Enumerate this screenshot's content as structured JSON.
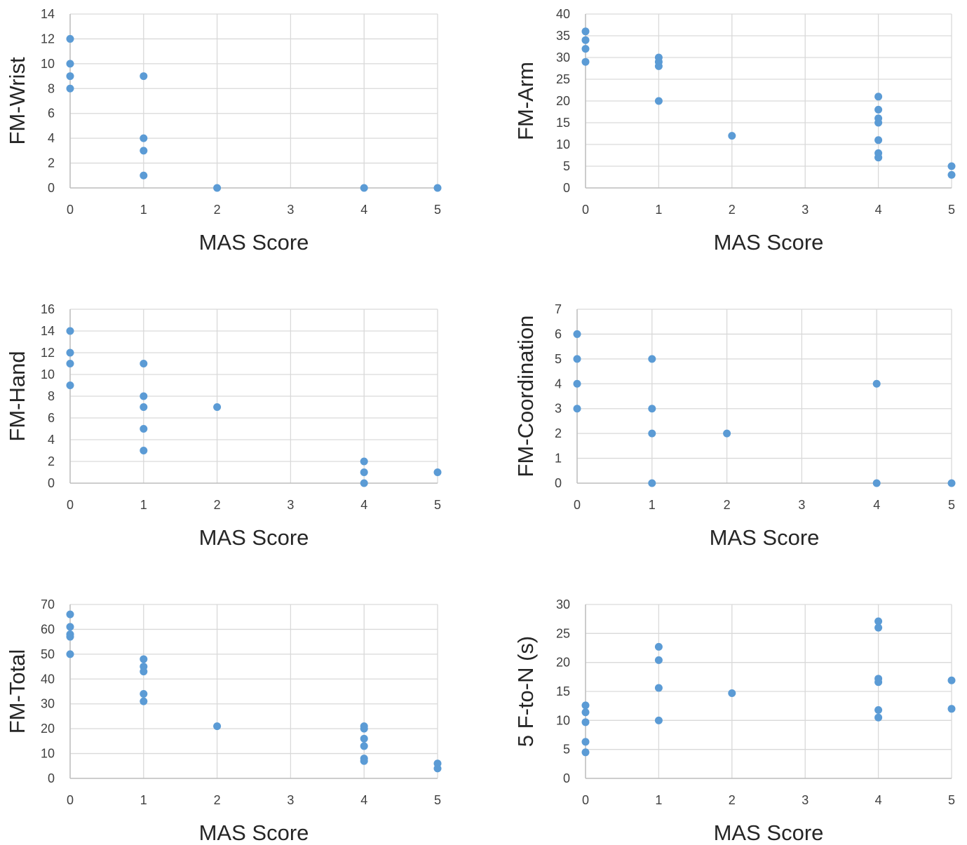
{
  "colors": {
    "marker": "#5b9bd5",
    "grid": "#d9d9d9",
    "axis": "#bfbfbf",
    "tick_text": "#404040",
    "title_text": "#262626"
  },
  "chart_data": [
    {
      "type": "scatter",
      "xlabel": "MAS Score",
      "ylabel": "FM-Wrist",
      "xlim": [
        0,
        5
      ],
      "ylim": [
        0,
        14
      ],
      "xticks": [
        0,
        1,
        2,
        3,
        4,
        5
      ],
      "yticks": [
        0,
        2,
        4,
        6,
        8,
        10,
        12,
        14
      ],
      "grid": true,
      "x": [
        0,
        0,
        0,
        0,
        1,
        1,
        1,
        1,
        2,
        4,
        5
      ],
      "y": [
        12,
        10,
        9,
        8,
        9,
        4,
        3,
        1,
        0,
        0,
        0
      ]
    },
    {
      "type": "scatter",
      "xlabel": "MAS Score",
      "ylabel": "FM-Arm",
      "xlim": [
        0,
        5
      ],
      "ylim": [
        0,
        40
      ],
      "xticks": [
        0,
        1,
        2,
        3,
        4,
        5
      ],
      "yticks": [
        0,
        5,
        10,
        15,
        20,
        25,
        30,
        35,
        40
      ],
      "grid": true,
      "x": [
        0,
        0,
        0,
        0,
        1,
        1,
        1,
        1,
        2,
        4,
        4,
        4,
        4,
        4,
        4,
        4,
        4,
        5,
        5
      ],
      "y": [
        36,
        34,
        32,
        29,
        30,
        29,
        28,
        20,
        12,
        21,
        18,
        16,
        15,
        11,
        8,
        7,
        7,
        5,
        3
      ]
    },
    {
      "type": "scatter",
      "xlabel": "MAS Score",
      "ylabel": "FM-Hand",
      "xlim": [
        0,
        5
      ],
      "ylim": [
        0,
        16
      ],
      "xticks": [
        0,
        1,
        2,
        3,
        4,
        5
      ],
      "yticks": [
        0,
        2,
        4,
        6,
        8,
        10,
        12,
        14,
        16
      ],
      "grid": true,
      "x": [
        0,
        0,
        0,
        0,
        1,
        1,
        1,
        1,
        1,
        2,
        4,
        4,
        4,
        5
      ],
      "y": [
        14,
        12,
        11,
        9,
        11,
        8,
        7,
        5,
        3,
        7,
        2,
        1,
        0,
        1
      ]
    },
    {
      "type": "scatter",
      "xlabel": "MAS Score",
      "ylabel": "FM-Coordination",
      "xlim": [
        0,
        5
      ],
      "ylim": [
        0,
        7
      ],
      "xticks": [
        0,
        1,
        2,
        3,
        4,
        5
      ],
      "yticks": [
        0,
        1,
        2,
        3,
        4,
        5,
        6,
        7
      ],
      "grid": true,
      "x": [
        0,
        0,
        0,
        0,
        1,
        1,
        1,
        1,
        2,
        4,
        4,
        5
      ],
      "y": [
        6,
        5,
        4,
        3,
        5,
        3,
        2,
        0,
        2,
        4,
        0,
        0
      ]
    },
    {
      "type": "scatter",
      "xlabel": "MAS Score",
      "ylabel": "FM-Total",
      "xlim": [
        0,
        5
      ],
      "ylim": [
        0,
        70
      ],
      "xticks": [
        0,
        1,
        2,
        3,
        4,
        5
      ],
      "yticks": [
        0,
        10,
        20,
        30,
        40,
        50,
        60,
        70
      ],
      "grid": true,
      "x": [
        0,
        0,
        0,
        0,
        0,
        1,
        1,
        1,
        1,
        1,
        2,
        4,
        4,
        4,
        4,
        4,
        4,
        5,
        5
      ],
      "y": [
        66,
        61,
        58,
        57,
        50,
        48,
        45,
        43,
        34,
        31,
        21,
        21,
        20,
        16,
        13,
        8,
        7,
        6,
        4
      ]
    },
    {
      "type": "scatter",
      "xlabel": "MAS Score",
      "ylabel": "5 F-to-N (s)",
      "xlim": [
        0,
        5
      ],
      "ylim": [
        0,
        30
      ],
      "xticks": [
        0,
        1,
        2,
        3,
        4,
        5
      ],
      "yticks": [
        0,
        5,
        10,
        15,
        20,
        25,
        30
      ],
      "grid": true,
      "x": [
        0,
        0,
        0,
        0,
        0,
        1,
        1,
        1,
        1,
        2,
        4,
        4,
        4,
        4,
        4,
        4,
        5,
        5
      ],
      "y": [
        12.6,
        11.4,
        9.7,
        6.3,
        4.5,
        22.7,
        20.4,
        15.6,
        10,
        14.7,
        27.1,
        26,
        17.2,
        16.6,
        11.8,
        10.5,
        16.9,
        12
      ]
    }
  ]
}
